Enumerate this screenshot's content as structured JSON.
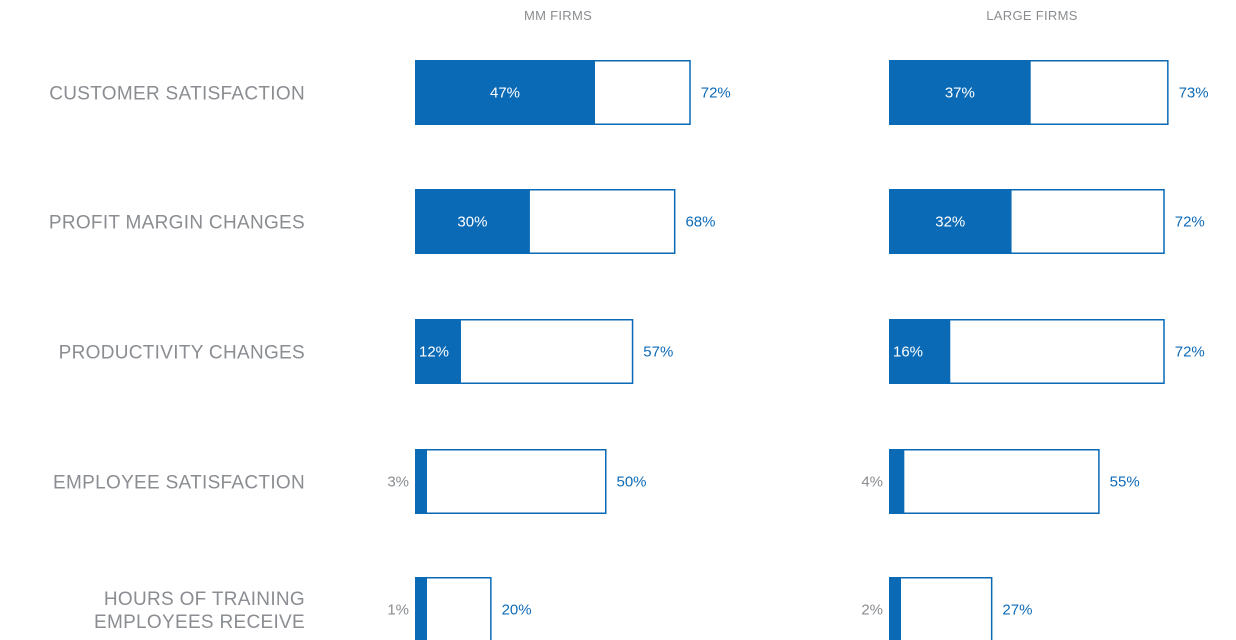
{
  "colors": {
    "fill": "#0a6ab6",
    "outline": "#0a6ab6",
    "category_text": "#8a8d91",
    "value_text": "#0f6bb7"
  },
  "chart_data": {
    "type": "bar",
    "orientation": "horizontal",
    "series": [
      {
        "name": "MM FIRMS"
      },
      {
        "name": "LARGE FIRMS"
      }
    ],
    "categories": [
      {
        "label_lines": [
          "CUSTOMER SATISFACTION"
        ],
        "mm": {
          "inner": 47,
          "outer": 72,
          "inner_label": "47%",
          "outer_label": "72%"
        },
        "large": {
          "inner": 37,
          "outer": 73,
          "inner_label": "37%",
          "outer_label": "73%"
        }
      },
      {
        "label_lines": [
          "PROFIT MARGIN CHANGES"
        ],
        "mm": {
          "inner": 30,
          "outer": 68,
          "inner_label": "30%",
          "outer_label": "68%"
        },
        "large": {
          "inner": 32,
          "outer": 72,
          "inner_label": "32%",
          "outer_label": "72%"
        }
      },
      {
        "label_lines": [
          "PRODUCTIVITY CHANGES"
        ],
        "mm": {
          "inner": 12,
          "outer": 57,
          "inner_label": "12%",
          "outer_label": "57%"
        },
        "large": {
          "inner": 16,
          "outer": 72,
          "inner_label": "16%",
          "outer_label": "72%"
        }
      },
      {
        "label_lines": [
          "EMPLOYEE SATISFACTION"
        ],
        "mm": {
          "inner": 3,
          "outer": 50,
          "inner_label": "3%",
          "outer_label": "50%"
        },
        "large": {
          "inner": 4,
          "outer": 55,
          "inner_label": "4%",
          "outer_label": "55%"
        }
      },
      {
        "label_lines": [
          "HOURS OF TRAINING",
          "EMPLOYEES RECEIVE"
        ],
        "mm": {
          "inner": 1,
          "outer": 20,
          "inner_label": "1%",
          "outer_label": "20%"
        },
        "large": {
          "inner": 2,
          "outer": 27,
          "inner_label": "2%",
          "outer_label": "27%"
        }
      }
    ]
  }
}
